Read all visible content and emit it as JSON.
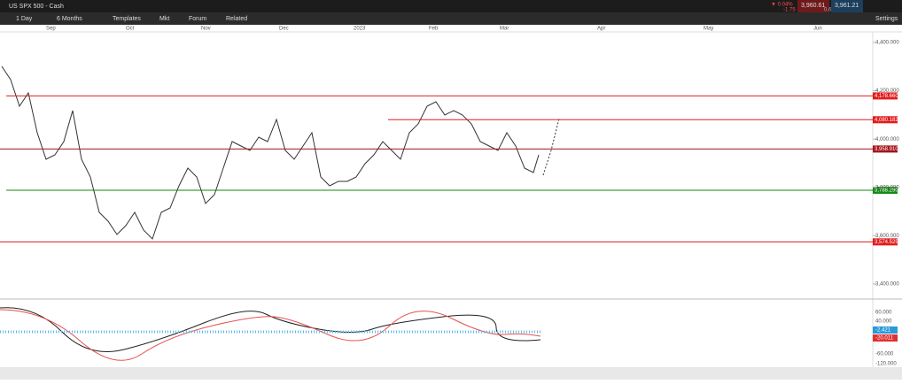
{
  "toolbar": {
    "instrument": "US SPX 500 - Cash",
    "interval": "1 Day",
    "range": "6 Months",
    "templates": "Templates",
    "mkt": "Mkt",
    "forum": "Forum",
    "related": "Related",
    "settings": "Settings",
    "change_pct": "▼ 0.04%",
    "change": "-1.75",
    "bid": "3,960.61",
    "ask": "3,961.21",
    "spread": "0.6"
  },
  "chart": {
    "months": [
      "Sep",
      "Oct",
      "Nov",
      "Dec",
      "2023",
      "Feb",
      "Mar",
      "Apr",
      "May",
      "Jun"
    ],
    "ylim": [
      3400,
      4400
    ],
    "yticks": [
      {
        "value": 4400,
        "label": "4,400.000"
      },
      {
        "value": 4200,
        "label": "4,200.000"
      },
      {
        "value": 4000,
        "label": "4,000.000"
      },
      {
        "value": 3800,
        "label": "3,800.000"
      },
      {
        "value": 3600,
        "label": "3,600.000"
      },
      {
        "value": 3400,
        "label": "3,400.000"
      }
    ],
    "levels": [
      {
        "value": 4178.66,
        "label": "4,178.660",
        "color": "#e31b1b"
      },
      {
        "value": 4080.182,
        "label": "4,080.182",
        "color": "#e31b1b"
      },
      {
        "value": 3958.91,
        "label": "3,958.910",
        "color": "#a3141b"
      },
      {
        "value": 3788.29,
        "label": "3,788.290",
        "color": "#138a13"
      },
      {
        "value": 3574.525,
        "label": "3,574.525",
        "color": "#e31b1b"
      }
    ]
  },
  "indicator": {
    "ticks": [
      "60.000",
      "40.000",
      "-60.000",
      "-120.000"
    ],
    "labels": [
      "-2.421",
      "-20.011"
    ]
  }
}
